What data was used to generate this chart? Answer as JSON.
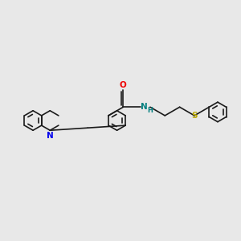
{
  "background_color": "#e8e8e8",
  "bond_color": "#1a1a1a",
  "bond_width": 1.2,
  "N_color": "#0000ee",
  "O_color": "#ee0000",
  "S_color": "#bbaa00",
  "NH_color": "#008080",
  "font_size": 7.5,
  "font_size_h": 6.0,
  "fig_width": 3.0,
  "fig_height": 3.0,
  "dpi": 100,
  "xlim": [
    0,
    10
  ],
  "ylim": [
    2,
    8
  ]
}
